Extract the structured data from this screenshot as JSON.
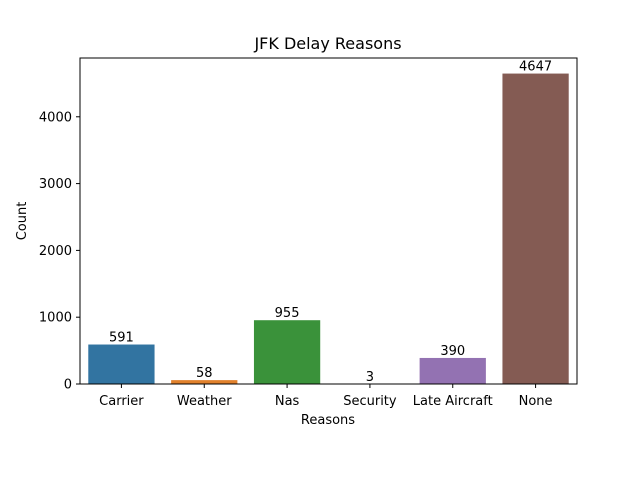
{
  "chart_data": {
    "type": "bar",
    "title": "JFK Delay Reasons",
    "xlabel": "Reasons",
    "ylabel": "Count",
    "categories": [
      "Carrier",
      "Weather",
      "Nas",
      "Security",
      "Late Aircraft",
      "None"
    ],
    "values": [
      591,
      58,
      955,
      3,
      390,
      4647
    ],
    "data_labels": [
      "591",
      "58",
      "955",
      "3",
      "390",
      "4647"
    ],
    "colors": [
      "#3274a1",
      "#e1812c",
      "#3a923a",
      "#c03d3e",
      "#9372b2",
      "#845b53"
    ],
    "ylim": [
      0,
      4880
    ],
    "yticks": [
      0,
      1000,
      2000,
      3000,
      4000
    ],
    "grid": false,
    "legend": "none"
  }
}
